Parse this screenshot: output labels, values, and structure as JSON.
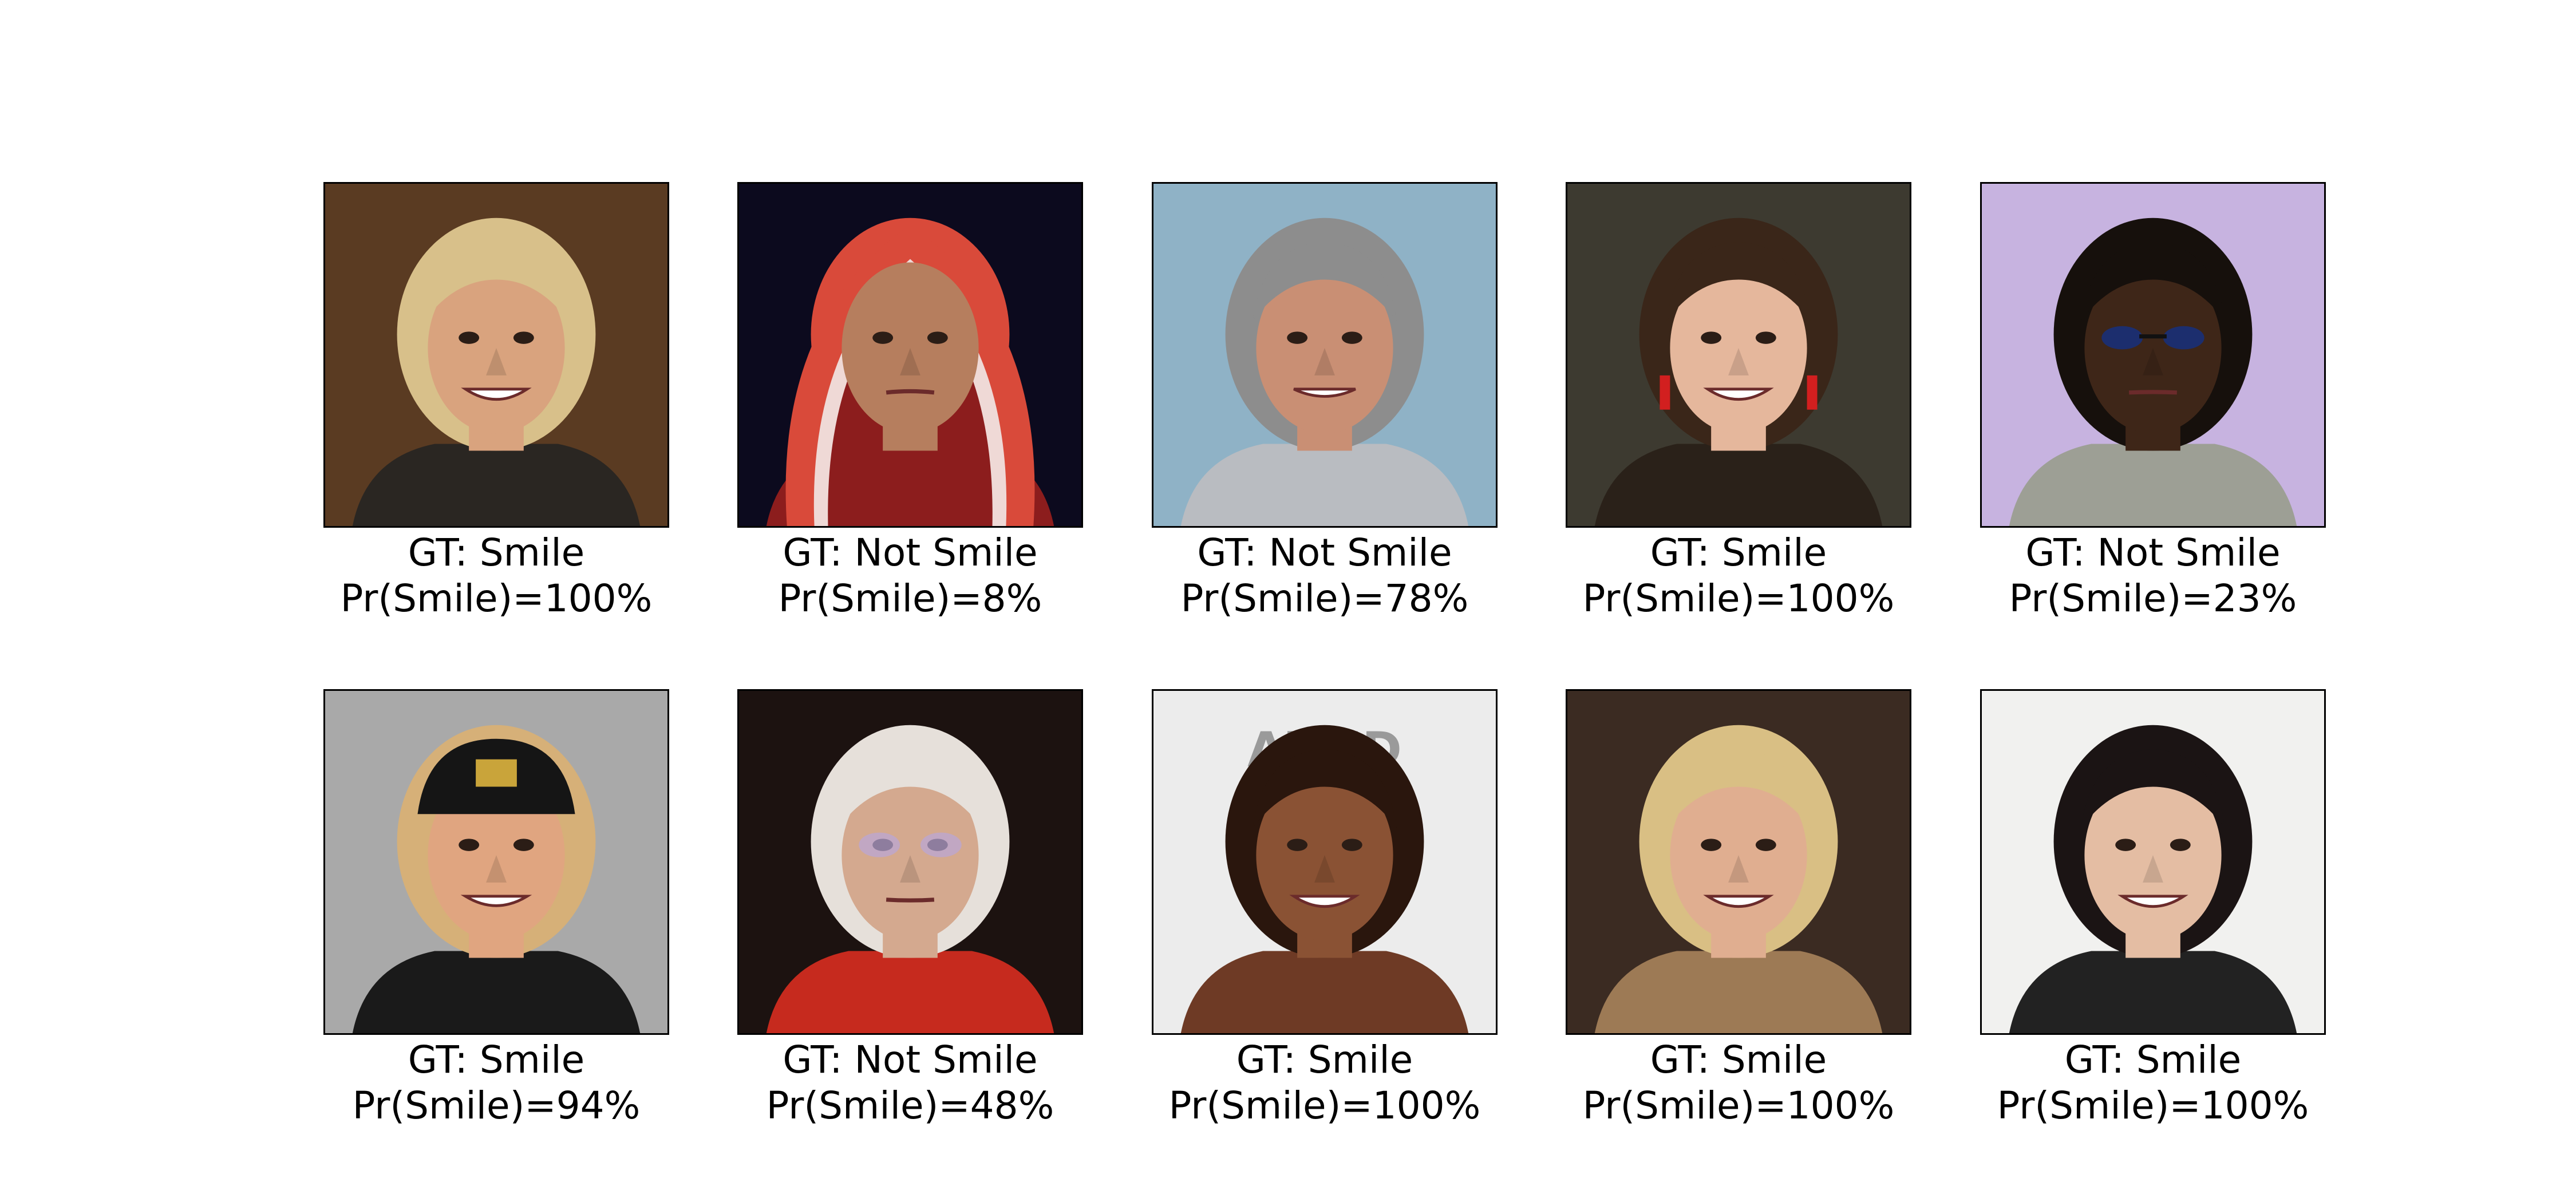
{
  "panels": [
    {
      "gt": "GT: Smile",
      "prob": "Pr(Smile)=100%",
      "gt_value": "Smile",
      "prob_value": 1.0,
      "bg": "#5a3b22",
      "skin": "#d9a37e",
      "hair": "#d8c08a",
      "shirt": "#2a2622",
      "accessory": "none"
    },
    {
      "gt": "GT: Not Smile",
      "prob": "Pr(Smile)=8%",
      "gt_value": "Not Smile",
      "prob_value": 0.08,
      "bg": "#0c0a1e",
      "skin": "#b67e5e",
      "hair": "#d94a3a",
      "shirt": "#8c1d1d",
      "accessory": "hood"
    },
    {
      "gt": "GT: Not Smile",
      "prob": "Pr(Smile)=78%",
      "gt_value": "Not Smile",
      "prob_value": 0.78,
      "bg": "#8fb2c6",
      "skin": "#c98f74",
      "hair": "#8d8d8d",
      "shirt": "#b9bcc1",
      "accessory": "none"
    },
    {
      "gt": "GT: Smile",
      "prob": "Pr(Smile)=100%",
      "gt_value": "Smile",
      "prob_value": 1.0,
      "bg": "#3d3a30",
      "skin": "#e5b79c",
      "hair": "#3a2619",
      "shirt": "#2a2119",
      "accessory": "earrings"
    },
    {
      "gt": "GT: Not Smile",
      "prob": "Pr(Smile)=23%",
      "gt_value": "Not Smile",
      "prob_value": 0.23,
      "bg": "#c7b3e0",
      "skin": "#3e2618",
      "hair": "#16100c",
      "shirt": "#9d9f95",
      "accessory": "sunglasses"
    },
    {
      "gt": "GT: Smile",
      "prob": "Pr(Smile)=94%",
      "gt_value": "Smile",
      "prob_value": 0.94,
      "bg": "#a9a9a9",
      "skin": "#e0a580",
      "hair": "#d6b078",
      "shirt": "#1a1a1a",
      "accessory": "cap"
    },
    {
      "gt": "GT: Not Smile",
      "prob": "Pr(Smile)=48%",
      "gt_value": "Not Smile",
      "prob_value": 0.48,
      "bg": "#1c1210",
      "skin": "#d4a98f",
      "hair": "#e6e0da",
      "shirt": "#c62a1e",
      "accessory": "glasses"
    },
    {
      "gt": "GT: Smile",
      "prob": "Pr(Smile)=100%",
      "gt_value": "Smile",
      "prob_value": 1.0,
      "bg": "#ececec",
      "skin": "#8a5234",
      "hair": "#2a160d",
      "shirt": "#6e3a25",
      "accessory": "text"
    },
    {
      "gt": "GT: Smile",
      "prob": "Pr(Smile)=100%",
      "gt_value": "Smile",
      "prob_value": 1.0,
      "bg": "#3b2b22",
      "skin": "#e0ae90",
      "hair": "#d9bf84",
      "shirt": "#9d7a55",
      "accessory": "none"
    },
    {
      "gt": "GT: Smile",
      "prob": "Pr(Smile)=100%",
      "gt_value": "Smile",
      "prob_value": 1.0,
      "bg": "#f1f1ef",
      "skin": "#e4bda3",
      "hair": "#1b1414",
      "shirt": "#222222",
      "accessory": "none"
    }
  ],
  "background_text": "AUND"
}
